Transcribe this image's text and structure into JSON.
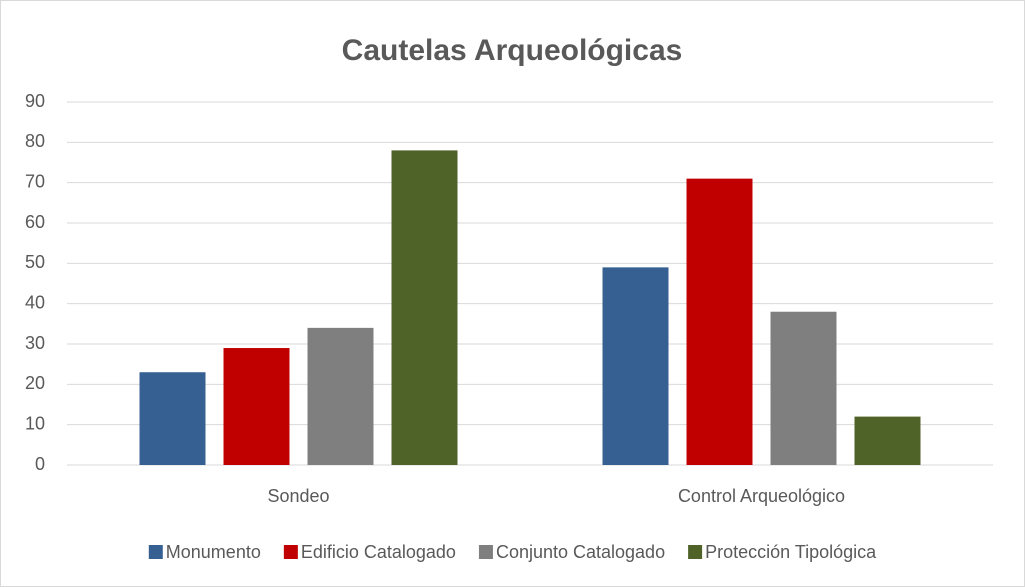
{
  "chart_data": {
    "type": "bar",
    "title": "Cautelas Arqueológicas",
    "categories": [
      "Sondeo",
      "Control Arqueológico"
    ],
    "series": [
      {
        "name": "Monumento",
        "color": "#376092",
        "values": [
          23,
          49
        ]
      },
      {
        "name": "Edificio Catalogado",
        "color": "#c00000",
        "values": [
          29,
          71
        ]
      },
      {
        "name": "Conjunto Catalogado",
        "color": "#7f7f7f",
        "values": [
          34,
          38
        ]
      },
      {
        "name": "Protección Tipológica",
        "color": "#4f6228",
        "values": [
          78,
          12
        ]
      }
    ],
    "ylim": [
      0,
      90
    ],
    "yticks": [
      0,
      10,
      20,
      30,
      40,
      50,
      60,
      70,
      80,
      90
    ],
    "grid": true,
    "legend": "bottom"
  }
}
